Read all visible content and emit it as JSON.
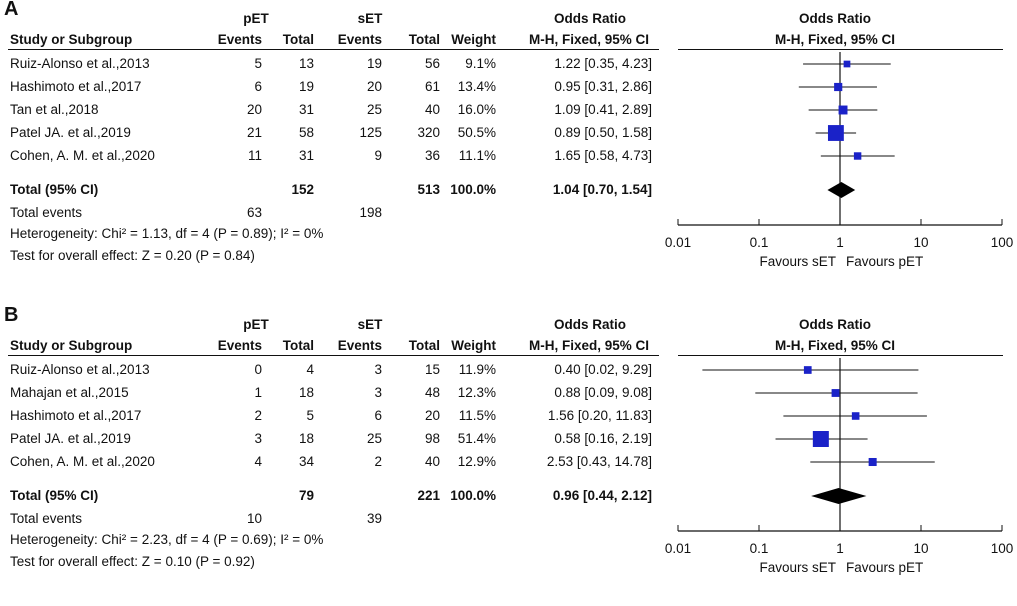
{
  "chart_data": [
    {
      "type": "forest",
      "panel_label": "A",
      "headers": {
        "group1": "pET",
        "group2": "sET",
        "study": "Study or Subgroup",
        "events1": "Events",
        "total1": "Total",
        "events2": "Events",
        "total2": "Total",
        "weight": "Weight",
        "or_title": "Odds Ratio",
        "or_method": "M-H, Fixed, 95% CI",
        "plot_title": "Odds Ratio",
        "plot_method": "M-H, Fixed, 95% CI"
      },
      "studies": [
        {
          "name": "Ruiz-Alonso et al.,2013",
          "events1": "5",
          "total1": "13",
          "events2": "19",
          "total2": "56",
          "weight": "9.1%",
          "ci_text": "1.22 [0.35, 4.23]",
          "or": 1.22,
          "lo": 0.35,
          "hi": 4.23,
          "w": 9.1
        },
        {
          "name": "Hashimoto et al.,2017",
          "events1": "6",
          "total1": "19",
          "events2": "20",
          "total2": "61",
          "weight": "13.4%",
          "ci_text": "0.95 [0.31, 2.86]",
          "or": 0.95,
          "lo": 0.31,
          "hi": 2.86,
          "w": 13.4
        },
        {
          "name": "Tan et al.,2018",
          "events1": "20",
          "total1": "31",
          "events2": "25",
          "total2": "40",
          "weight": "16.0%",
          "ci_text": "1.09 [0.41, 2.89]",
          "or": 1.09,
          "lo": 0.41,
          "hi": 2.89,
          "w": 16.0
        },
        {
          "name": "Patel JA. et al.,2019",
          "events1": "21",
          "total1": "58",
          "events2": "125",
          "total2": "320",
          "weight": "50.5%",
          "ci_text": "0.89 [0.50, 1.58]",
          "or": 0.89,
          "lo": 0.5,
          "hi": 1.58,
          "w": 50.5
        },
        {
          "name": "Cohen, A. M. et al.,2020",
          "events1": "11",
          "total1": "31",
          "events2": "9",
          "total2": "36",
          "weight": "11.1%",
          "ci_text": "1.65 [0.58, 4.73]",
          "or": 1.65,
          "lo": 0.58,
          "hi": 4.73,
          "w": 11.1
        }
      ],
      "total": {
        "label": "Total (95% CI)",
        "total1": "152",
        "total2": "513",
        "weight": "100.0%",
        "ci_text": "1.04 [0.70, 1.54]",
        "or": 1.04,
        "lo": 0.7,
        "hi": 1.54
      },
      "total_events": {
        "label": "Total events",
        "events1": "63",
        "events2": "198"
      },
      "heterogeneity": "Heterogeneity: Chi² = 1.13, df = 4 (P = 0.89); I² = 0%",
      "overall_effect": "Test for overall effect: Z = 0.20 (P = 0.84)",
      "axis": {
        "scale": "log",
        "ticks": [
          0.01,
          0.1,
          1,
          10,
          100
        ],
        "tick_labels": [
          "0.01",
          "0.1",
          "1",
          "10",
          "100"
        ],
        "xlim": [
          0.01,
          100
        ]
      },
      "favours_left": "Favours sET",
      "favours_right": "Favours pET"
    },
    {
      "type": "forest",
      "panel_label": "B",
      "headers": {
        "group1": "pET",
        "group2": "sET",
        "study": "Study or Subgroup",
        "events1": "Events",
        "total1": "Total",
        "events2": "Events",
        "total2": "Total",
        "weight": "Weight",
        "or_title": "Odds Ratio",
        "or_method": "M-H, Fixed, 95% CI",
        "plot_title": "Odds Ratio",
        "plot_method": "M-H, Fixed, 95% CI"
      },
      "studies": [
        {
          "name": "Ruiz-Alonso et al.,2013",
          "events1": "0",
          "total1": "4",
          "events2": "3",
          "total2": "15",
          "weight": "11.9%",
          "ci_text": "0.40 [0.02, 9.29]",
          "or": 0.4,
          "lo": 0.02,
          "hi": 9.29,
          "w": 11.9
        },
        {
          "name": "Mahajan et al.,2015",
          "events1": "1",
          "total1": "18",
          "events2": "3",
          "total2": "48",
          "weight": "12.3%",
          "ci_text": "0.88 [0.09, 9.08]",
          "or": 0.88,
          "lo": 0.09,
          "hi": 9.08,
          "w": 12.3
        },
        {
          "name": "Hashimoto et al.,2017",
          "events1": "2",
          "total1": "5",
          "events2": "6",
          "total2": "20",
          "weight": "11.5%",
          "ci_text": "1.56 [0.20, 11.83]",
          "or": 1.56,
          "lo": 0.2,
          "hi": 11.83,
          "w": 11.5
        },
        {
          "name": "Patel JA. et al.,2019",
          "events1": "3",
          "total1": "18",
          "events2": "25",
          "total2": "98",
          "weight": "51.4%",
          "ci_text": "0.58 [0.16, 2.19]",
          "or": 0.58,
          "lo": 0.16,
          "hi": 2.19,
          "w": 51.4
        },
        {
          "name": "Cohen, A. M. et al.,2020",
          "events1": "4",
          "total1": "34",
          "events2": "2",
          "total2": "40",
          "weight": "12.9%",
          "ci_text": "2.53 [0.43, 14.78]",
          "or": 2.53,
          "lo": 0.43,
          "hi": 14.78,
          "w": 12.9
        }
      ],
      "total": {
        "label": "Total (95% CI)",
        "total1": "79",
        "total2": "221",
        "weight": "100.0%",
        "ci_text": "0.96 [0.44, 2.12]",
        "or": 0.96,
        "lo": 0.44,
        "hi": 2.12
      },
      "total_events": {
        "label": "Total events",
        "events1": "10",
        "events2": "39"
      },
      "heterogeneity": "Heterogeneity: Chi² = 2.23, df = 4 (P = 0.69); I² = 0%",
      "overall_effect": "Test for overall effect: Z = 0.10 (P = 0.92)",
      "axis": {
        "scale": "log",
        "ticks": [
          0.01,
          0.1,
          1,
          10,
          100
        ],
        "tick_labels": [
          "0.01",
          "0.1",
          "1",
          "10",
          "100"
        ],
        "xlim": [
          0.01,
          100
        ]
      },
      "favours_left": "Favours sET",
      "favours_right": "Favours pET"
    }
  ],
  "colors": {
    "marker": "#1a22c8",
    "text": "#111111",
    "diamond": "#000000"
  }
}
